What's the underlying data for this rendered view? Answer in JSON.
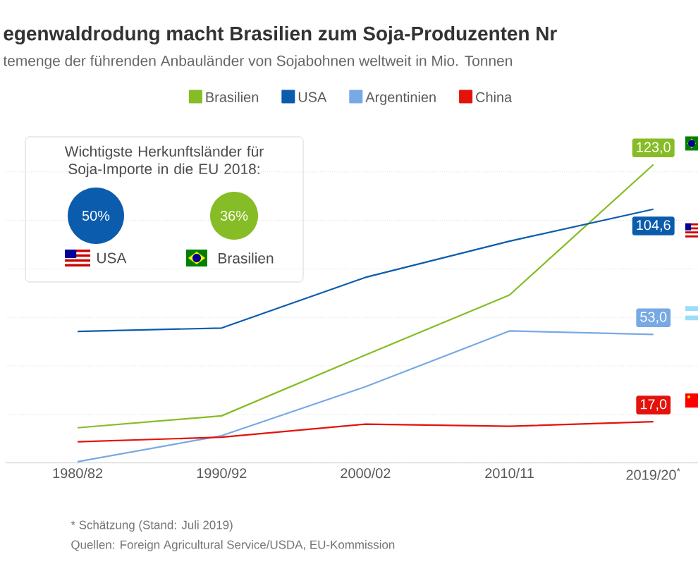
{
  "chart_data": {
    "type": "line",
    "title": "egenwaldrodung macht Brasilien zum Soja-Produzenten Nr",
    "subtitle": "temenge der führenden Anbauländer von Sojabohnen weltweit in Mio. Tonnen",
    "categories": [
      "1980/82",
      "1990/92",
      "2000/02",
      "2010/11",
      "2019/20$^{*}$"
    ],
    "series": [
      {
        "name": "Brasilien",
        "color": "#86bc25",
        "values": [
          14.5,
          19.4,
          44.5,
          69.2,
          123.0
        ],
        "value_labels": [
          null,
          null,
          null,
          null,
          "123,0"
        ]
      },
      {
        "name": "USA",
        "color": "#0b5cad",
        "values": [
          54.2,
          55.6,
          76.5,
          91.4,
          104.6
        ],
        "value_labels": [
          null,
          null,
          null,
          null,
          "104,6"
        ]
      },
      {
        "name": "Argentinien",
        "color": "#77a9e4",
        "values": [
          0.5,
          11.2,
          31.4,
          54.4,
          53.0
        ],
        "value_labels": [
          null,
          null,
          null,
          null,
          "53,0"
        ]
      },
      {
        "name": "China",
        "color": "#e3120b",
        "values": [
          8.7,
          10.6,
          16.0,
          15.1,
          17.0
        ],
        "value_labels": [
          null,
          null,
          null,
          null,
          "17,0"
        ]
      }
    ],
    "yticks": [
      {
        "value": 0,
        "label": null
      },
      {
        "value": 20,
        "label": null
      },
      {
        "value": 40,
        "label": null
      },
      {
        "value": 60,
        "label": null
      },
      {
        "value": 80,
        "label": null
      },
      {
        "value": 100,
        "label": null
      },
      {
        "value": 120,
        "label": null
      }
    ],
    "tick_labels": "x",
    "grid": "y",
    "legend": "top",
    "marker": "none",
    "line_style": "solid",
    "annotations": [
      "Wichtigste Herkunftsländer für Soja-Importe in die EU 2018:",
      "50%",
      "USA",
      "36%",
      "Brasilien",
      "* Schätzung (Stand: Juli 2019)",
      "Quellen: Foreign Agricultural Service/USDA, EU-Kommission"
    ]
  }
}
